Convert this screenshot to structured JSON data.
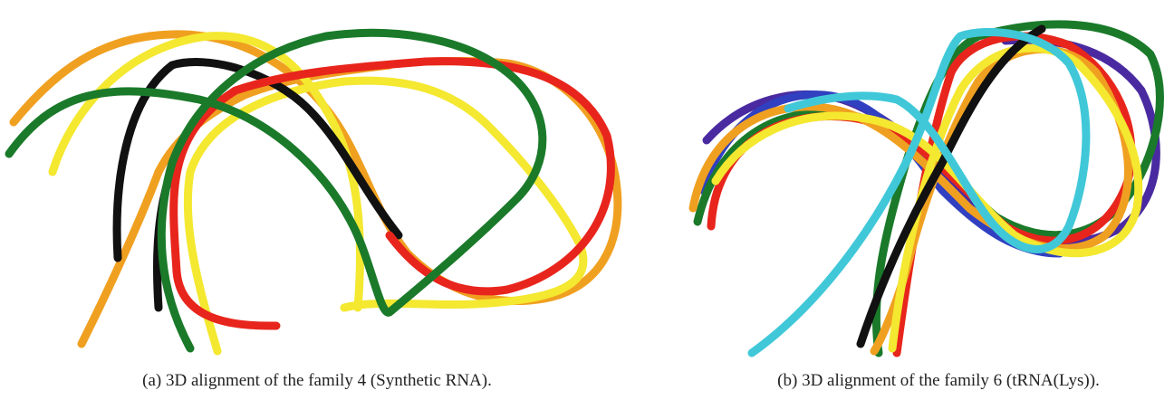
{
  "figures": [
    {
      "caption": "(a) 3D alignment of the family 4 (Synthetic RNA)."
    },
    {
      "caption": "(b) 3D alignment of the family 6 (tRNA(Lys))."
    }
  ]
}
